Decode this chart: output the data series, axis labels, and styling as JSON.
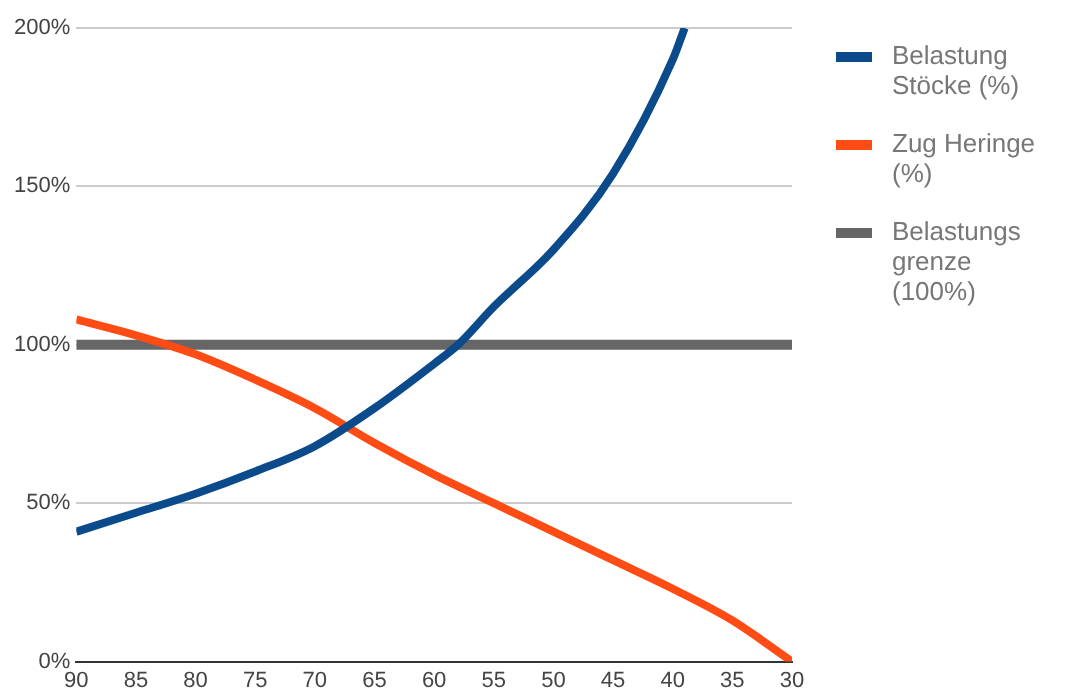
{
  "chart_data": {
    "type": "line",
    "xlim": [
      90,
      30
    ],
    "xticks": [
      90,
      85,
      80,
      75,
      70,
      65,
      60,
      55,
      50,
      45,
      40,
      35,
      30
    ],
    "ylim": [
      0,
      200
    ],
    "yticks": [
      {
        "value": 0,
        "label": "0%"
      },
      {
        "value": 50,
        "label": "50%"
      },
      {
        "value": 100,
        "label": "100%"
      },
      {
        "value": 150,
        "label": "150%"
      },
      {
        "value": 200,
        "label": "200%"
      }
    ],
    "grid": "y",
    "legend": "right",
    "marker": "none",
    "line_style": "solid",
    "series": [
      {
        "name": "Belastung Stöcke (%)",
        "color": "#0b4a8b",
        "x": [
          90,
          85,
          80,
          75,
          70,
          65,
          60,
          58,
          55,
          50,
          45,
          40,
          39
        ],
        "values": [
          41,
          47,
          53,
          60,
          68,
          80,
          94,
          100,
          112,
          130,
          154,
          190,
          200
        ]
      },
      {
        "name": "Zug Heringe (%)",
        "color": "#ff4b14",
        "x": [
          90,
          85,
          80,
          75,
          70,
          65,
          60,
          55,
          50,
          45,
          40,
          35,
          30
        ],
        "values": [
          108,
          103,
          97,
          89,
          80,
          69,
          59,
          50,
          41,
          32,
          23,
          13,
          0
        ]
      },
      {
        "name": "Belastungs grenze (100%)",
        "color": "#666666",
        "x": [
          90,
          30
        ],
        "values": [
          100,
          100
        ]
      }
    ]
  }
}
